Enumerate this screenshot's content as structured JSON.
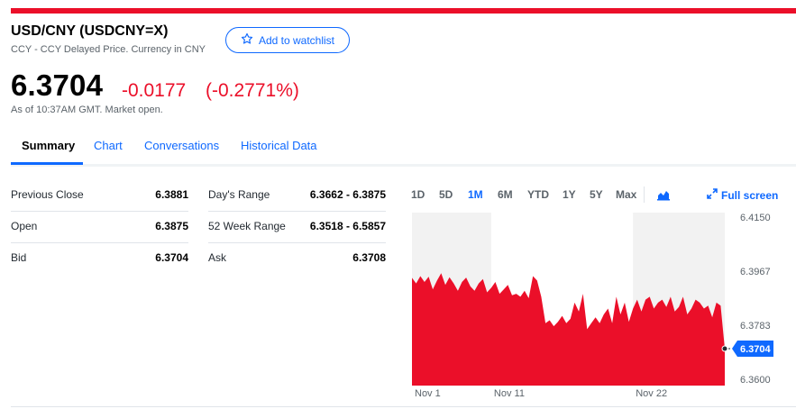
{
  "header": {
    "title": "USD/CNY (USDCNY=X)",
    "subtitle": "CCY - CCY Delayed Price. Currency in CNY",
    "watchlist_label": "Add to watchlist"
  },
  "quote": {
    "price": "6.3704",
    "change": "-0.0177",
    "change_pct": "(-0.2771%)",
    "as_of": "As of 10:37AM GMT. Market open.",
    "negative_color": "#eb0f29"
  },
  "tabs": [
    {
      "label": "Summary",
      "active": true
    },
    {
      "label": "Chart"
    },
    {
      "label": "Conversations"
    },
    {
      "label": "Historical Data"
    }
  ],
  "stats": {
    "left": [
      {
        "label": "Previous Close",
        "value": "6.3881"
      },
      {
        "label": "Open",
        "value": "6.3875"
      },
      {
        "label": "Bid",
        "value": "6.3704"
      }
    ],
    "right": [
      {
        "label": "Day's Range",
        "value": "6.3662 - 6.3875"
      },
      {
        "label": "52 Week Range",
        "value": "6.3518 - 6.5857"
      },
      {
        "label": "Ask",
        "value": "6.3708"
      }
    ]
  },
  "chart_controls": {
    "ranges": [
      "1D",
      "5D",
      "1M",
      "6M",
      "YTD",
      "1Y",
      "5Y",
      "Max"
    ],
    "active_range": "1M",
    "chart_type_icon": "area-chart-icon",
    "fullscreen_label": "Full screen",
    "fullscreen_icon": "expand-arrows-icon"
  },
  "chart_data": {
    "type": "area",
    "x_ticks": [
      "Nov 1",
      "Nov 11",
      "Nov 22"
    ],
    "y_ticks": [
      "6.4150",
      "6.3967",
      "6.3783",
      "6.3600"
    ],
    "ylim": [
      6.36,
      6.415
    ],
    "current_label": "6.3704",
    "current_value": 6.3704,
    "series_color": "#eb0f29",
    "accent_color": "#0f69ff",
    "series": [
      {
        "values": [
          6.3944,
          6.3925,
          6.395,
          6.393,
          6.3948,
          6.3905,
          6.3935,
          6.396,
          6.392,
          6.3946,
          6.3925,
          6.39,
          6.393,
          6.3945,
          6.3915,
          6.39,
          6.3925,
          6.394,
          6.3895,
          6.391,
          6.393,
          6.389,
          6.3905,
          6.392,
          6.3885,
          6.389,
          6.388,
          6.39,
          6.3875,
          6.395,
          6.3935,
          6.388,
          6.379,
          6.38,
          6.378,
          6.3795,
          6.3815,
          6.379,
          6.3805,
          6.386,
          6.383,
          6.389,
          6.377,
          6.379,
          6.381,
          6.379,
          6.382,
          6.384,
          6.379,
          6.388,
          6.382,
          6.386,
          6.3795,
          6.384,
          6.387,
          6.383,
          6.387,
          6.388,
          6.384,
          6.386,
          6.387,
          6.3845,
          6.388,
          6.383,
          6.3845,
          6.388,
          6.382,
          6.384,
          6.387,
          6.386,
          6.384,
          6.385,
          6.381,
          6.386,
          6.385,
          6.3704
        ]
      }
    ],
    "shaded_ranges": [
      [
        0,
        19
      ],
      [
        53,
        75
      ]
    ]
  }
}
